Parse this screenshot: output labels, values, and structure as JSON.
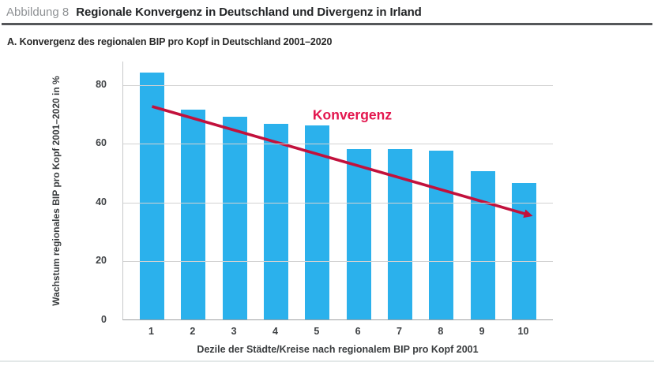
{
  "header": {
    "figure_label": "Abbildung 8",
    "title": "Regionale Konvergenz in Deutschland und Divergenz in Irland"
  },
  "panel": {
    "title": "A. Konvergenz des regionalen BIP pro Kopf in Deutschland 2001–2020"
  },
  "chart_data": {
    "type": "bar",
    "title": "A. Konvergenz des regionalen BIP pro Kopf in Deutschland 2001–2020",
    "categories": [
      "1",
      "2",
      "3",
      "4",
      "5",
      "6",
      "7",
      "8",
      "9",
      "10"
    ],
    "values": [
      84,
      71.5,
      69,
      66.5,
      66,
      58,
      58,
      57.5,
      50.5,
      46.5
    ],
    "xlabel": "Dezile der Städte/Kreise nach regionalem BIP pro Kopf 2001",
    "ylabel": "Wachstum regionales BIP pro Kopf 2001–2020 in %",
    "ylim": [
      0,
      88
    ],
    "yticks": [
      0,
      20,
      40,
      60,
      80
    ],
    "grid": true,
    "legend": "none",
    "annotation": {
      "text": "Konvergenz",
      "color": "#E3164E"
    },
    "arrow": {
      "from_index": 0,
      "from_value": 72.7,
      "to_index": 9.15,
      "to_value": 35.7,
      "color": "#C2113C"
    },
    "bar_color": "#2BB1EC"
  },
  "colors": {
    "bar": "#2BB1EC",
    "arrow": "#C2113C",
    "annotation": "#E3164E",
    "figure_label": "#8F9295",
    "title_text": "#222426",
    "header_rule": "#55575A",
    "gridline": "#D2D2D2",
    "tick_text": "#3F4245",
    "bottom_line": "#E3E8E8"
  }
}
